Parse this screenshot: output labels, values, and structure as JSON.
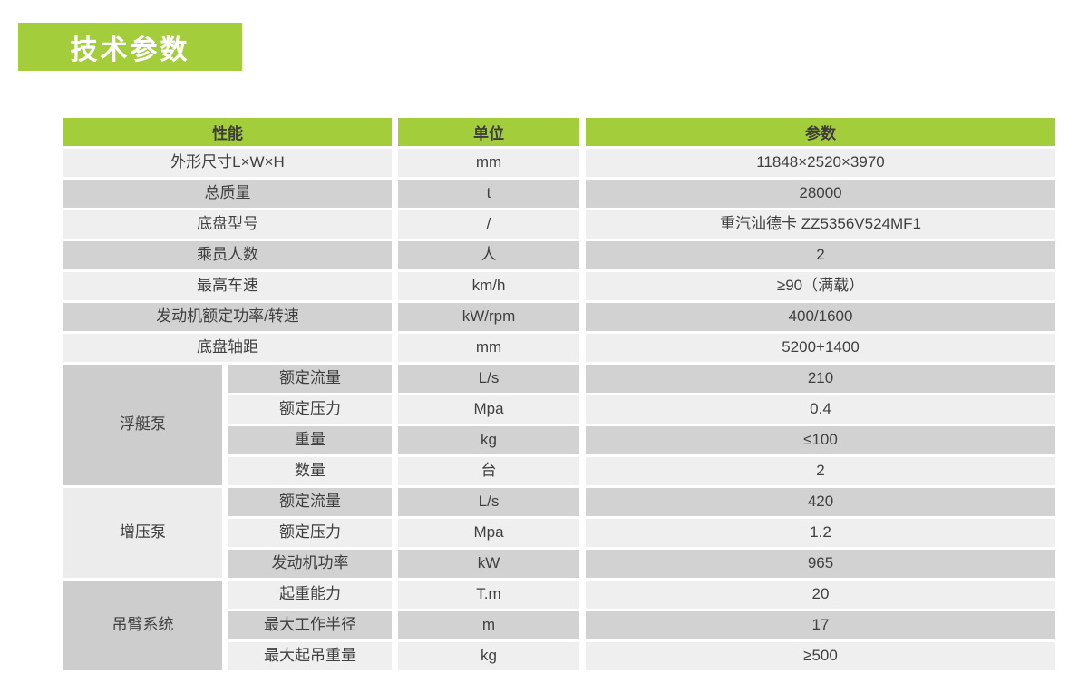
{
  "colors": {
    "accent": "#a3cd3a",
    "row_light": "#efefef",
    "row_dark": "#d2d2d2",
    "group_dark": "#cdcdcd",
    "group_light": "#ececec",
    "text": "#404040"
  },
  "title_badge": {
    "label": "技术参数"
  },
  "table": {
    "headers": [
      "性能",
      "单位",
      "参数"
    ],
    "simple_rows": [
      {
        "name": "外形尺寸L×W×H",
        "unit": "mm",
        "value": "11848×2520×3970"
      },
      {
        "name": "总质量",
        "unit": "t",
        "value": "28000"
      },
      {
        "name": "底盘型号",
        "unit": "/",
        "value": "重汽汕德卡 ZZ5356V524MF1"
      },
      {
        "name": "乘员人数",
        "unit": "人",
        "value": "2"
      },
      {
        "name": "最高车速",
        "unit": "km/h",
        "value": "≥90（满载）"
      },
      {
        "name": "发动机额定功率/转速",
        "unit": "kW/rpm",
        "value": "400/1600"
      },
      {
        "name": "底盘轴距",
        "unit": "mm",
        "value": "5200+1400"
      }
    ],
    "groups": [
      {
        "name": "浮艇泵",
        "rows": [
          {
            "name": "额定流量",
            "unit": "L/s",
            "value": "210"
          },
          {
            "name": "额定压力",
            "unit": "Mpa",
            "value": "0.4"
          },
          {
            "name": "重量",
            "unit": "kg",
            "value": "≤100"
          },
          {
            "name": "数量",
            "unit": "台",
            "value": "2"
          }
        ]
      },
      {
        "name": "增压泵",
        "rows": [
          {
            "name": "额定流量",
            "unit": "L/s",
            "value": "420"
          },
          {
            "name": "额定压力",
            "unit": "Mpa",
            "value": "1.2"
          },
          {
            "name": "发动机功率",
            "unit": "kW",
            "value": "965"
          }
        ]
      },
      {
        "name": "吊臂系统",
        "rows": [
          {
            "name": "起重能力",
            "unit": "T.m",
            "value": "20"
          },
          {
            "name": "最大工作半径",
            "unit": "m",
            "value": "17"
          },
          {
            "name": "最大起吊重量",
            "unit": "kg",
            "value": "≥500"
          }
        ]
      }
    ]
  }
}
